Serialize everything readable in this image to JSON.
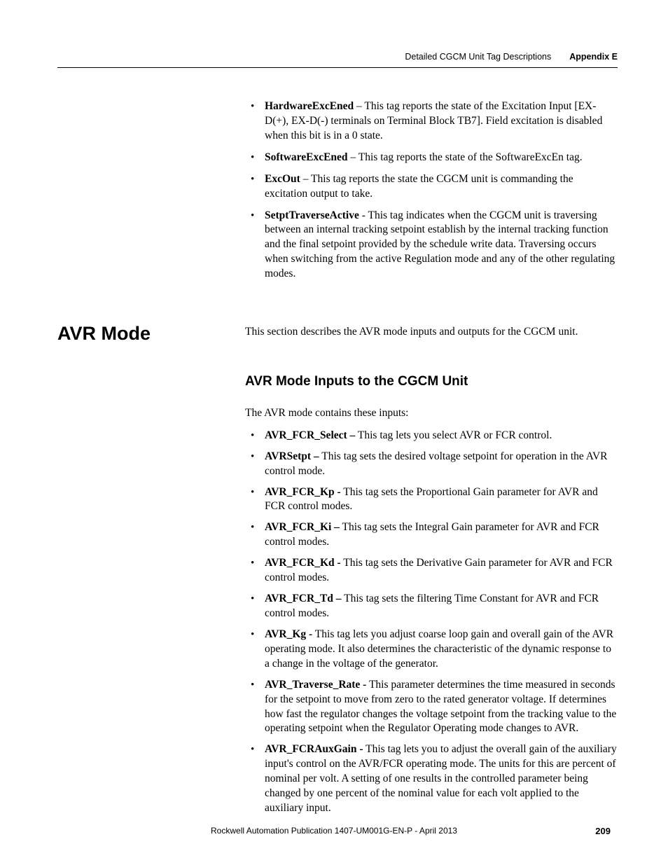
{
  "header": {
    "doc_section": "Detailed CGCM Unit Tag Descriptions",
    "appendix": "Appendix E"
  },
  "top_bullets": [
    {
      "tag": "HardwareExcEned",
      "sep": " – ",
      "text": "This tag reports the state of the Excitation Input [EX-D(+), EX-D(-) terminals on Terminal Block TB7]. Field excitation is disabled when this bit is in a 0 state."
    },
    {
      "tag": "SoftwareExcEned",
      "sep": " – ",
      "text": "This tag reports the state of the SoftwareExcEn tag."
    },
    {
      "tag": "ExcOut",
      "sep": " – ",
      "text": "This tag reports the state the CGCM unit is commanding the excitation output to take."
    },
    {
      "tag": "SetptTraverseActive",
      "sep": " - ",
      "text": "This tag indicates when the CGCM unit is traversing between an internal tracking setpoint establish by the internal tracking function and the final setpoint provided by the schedule write data. Traversing occurs when switching from the active Regulation mode and any of the other regulating modes."
    }
  ],
  "section": {
    "heading": "AVR Mode",
    "intro": "This section describes the AVR mode inputs and outputs for the CGCM unit."
  },
  "subsection": {
    "heading": "AVR Mode Inputs to the CGCM Unit",
    "intro": "The AVR mode contains these inputs:"
  },
  "input_bullets": [
    {
      "tag": "AVR_FCR_Select –",
      "sep": " ",
      "text": "This tag lets you select AVR or FCR control."
    },
    {
      "tag": "AVRSetpt –",
      "sep": " ",
      "text": "This tag sets the desired voltage setpoint for operation in the AVR control mode."
    },
    {
      "tag": "AVR_FCR_Kp -",
      "sep": " ",
      "text": "This tag sets the Proportional Gain parameter for AVR and FCR control modes."
    },
    {
      "tag": "AVR_FCR_Ki –",
      "sep": " ",
      "text": "This tag sets the Integral Gain parameter for AVR and FCR control modes."
    },
    {
      "tag": "AVR_FCR_Kd -",
      "sep": " ",
      "text": "This tag sets the Derivative Gain parameter for AVR and FCR control modes."
    },
    {
      "tag": "AVR_FCR_Td –",
      "sep": " ",
      "text": "This tag sets the filtering Time Constant for AVR and FCR control modes."
    },
    {
      "tag": "AVR_Kg -",
      "sep": " ",
      "text": "This tag lets you adjust coarse loop gain and overall gain of the AVR operating mode. It also determines the characteristic of the dynamic response to a change in the voltage of the generator."
    },
    {
      "tag": "AVR_Traverse_Rate -",
      "sep": " ",
      "text": "This parameter determines the time measured in seconds for the setpoint to move from zero to the rated generator voltage. If determines how fast the regulator changes the voltage setpoint from the tracking value to the operating setpoint when the Regulator Operating mode changes to AVR."
    },
    {
      "tag": "AVR_FCRAuxGain -",
      "sep": " ",
      "text": "This tag lets you  to adjust the overall gain of the auxiliary input's control on the AVR/FCR operating mode. The units for this are percent of nominal per volt. A setting of one results in the controlled parameter being changed by one percent of the nominal value for each volt applied to the auxiliary input."
    }
  ],
  "footer": {
    "publication": "Rockwell Automation Publication 1407-UM001G-EN-P - April 2013",
    "page_number": "209"
  }
}
